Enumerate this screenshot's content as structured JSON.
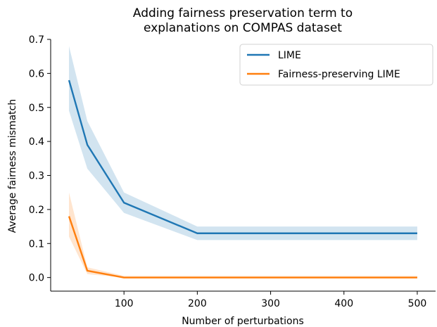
{
  "chart_data": {
    "type": "line",
    "title_lines": [
      "Adding fairness preservation term to",
      "explanations on COMPAS dataset"
    ],
    "xlabel": "Number of perturbations",
    "ylabel": "Average fairness mismatch",
    "xlim": [
      0,
      525
    ],
    "ylim": [
      -0.04,
      0.7
    ],
    "x_ticks": [
      100,
      200,
      300,
      400,
      500
    ],
    "y_ticks": [
      0.0,
      0.1,
      0.2,
      0.3,
      0.4,
      0.5,
      0.6,
      0.7
    ],
    "x_tick_labels": [
      "100",
      "200",
      "300",
      "400",
      "500"
    ],
    "y_tick_labels": [
      "0.0",
      "0.1",
      "0.2",
      "0.3",
      "0.4",
      "0.5",
      "0.6",
      "0.7"
    ],
    "x": [
      25,
      50,
      100,
      200,
      300,
      400,
      500
    ],
    "series": [
      {
        "name": "LIME",
        "color": "#1f77b4",
        "values": [
          0.58,
          0.39,
          0.22,
          0.13,
          0.13,
          0.13,
          0.13
        ],
        "lower": [
          0.49,
          0.32,
          0.19,
          0.11,
          0.11,
          0.11,
          0.11
        ],
        "upper": [
          0.68,
          0.46,
          0.25,
          0.15,
          0.15,
          0.15,
          0.15
        ]
      },
      {
        "name": "Fairness-preserving LIME",
        "color": "#ff7f0e",
        "values": [
          0.18,
          0.02,
          0.0,
          0.0,
          0.0,
          0.0,
          0.0
        ],
        "lower": [
          0.12,
          0.01,
          0.0,
          0.0,
          0.0,
          0.0,
          0.0
        ],
        "upper": [
          0.25,
          0.03,
          0.005,
          0.005,
          0.005,
          0.005,
          0.005
        ]
      }
    ],
    "grid": false,
    "legend_position": "top-right"
  }
}
